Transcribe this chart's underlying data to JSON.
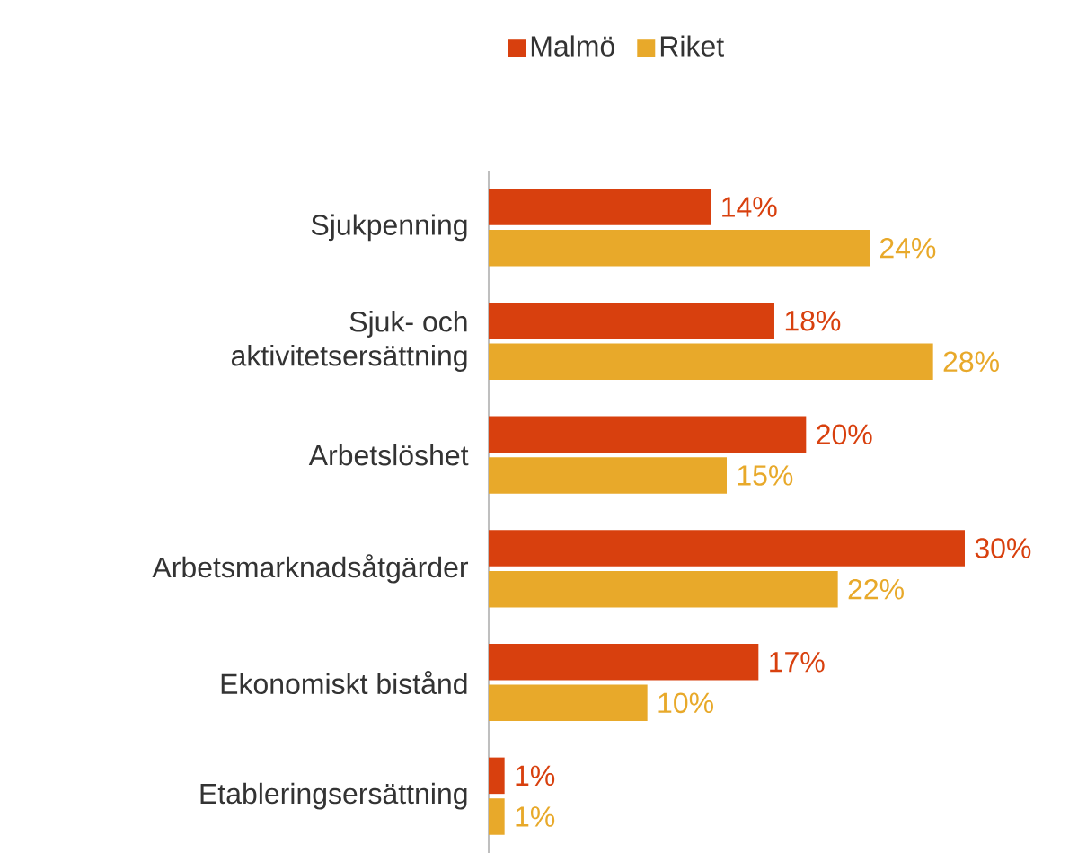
{
  "chart_data": {
    "type": "bar",
    "orientation": "horizontal",
    "categories": [
      "Sjukpenning",
      "Sjuk- och aktivitetsersättning",
      "Arbetslöshet",
      "Arbetsmarknadsåtgärder",
      "Ekonomiskt bistånd",
      "Etableringsersättning"
    ],
    "series": [
      {
        "name": "Malmö",
        "color": "#d8400e",
        "values": [
          14,
          18,
          20,
          30,
          17,
          1
        ],
        "value_labels": [
          "14%",
          "18%",
          "20%",
          "30%",
          "17%",
          "1%"
        ]
      },
      {
        "name": "Riket",
        "color": "#e8a92a",
        "values": [
          24,
          28,
          15,
          22,
          10,
          1
        ],
        "value_labels": [
          "24%",
          "28%",
          "15%",
          "22%",
          "10%",
          "1%"
        ]
      }
    ],
    "legend": "top"
  }
}
